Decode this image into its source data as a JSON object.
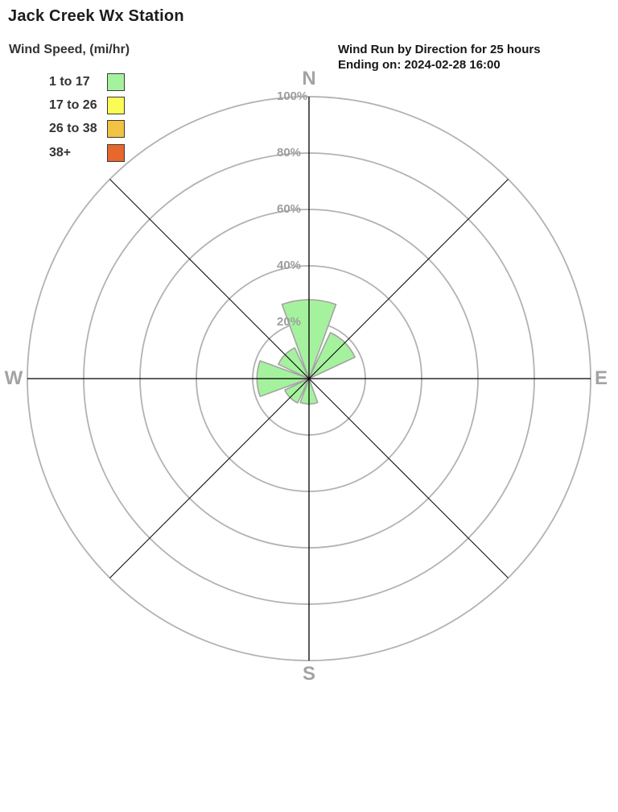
{
  "page": {
    "title": "Jack Creek Wx Station"
  },
  "header": {
    "line1": "Wind Run by Direction for 25 hours",
    "line2": "Ending on: 2024-02-28 16:00"
  },
  "legend": {
    "title": "Wind Speed, (mi/hr)",
    "items": [
      {
        "label": "1 to 17",
        "color": "#a5f29e"
      },
      {
        "label": "17 to 26",
        "color": "#fbfb55"
      },
      {
        "label": "26 to 38",
        "color": "#f1c342"
      },
      {
        "label": "38+",
        "color": "#e8672c"
      }
    ]
  },
  "chart_data": {
    "type": "windrose",
    "title": "Wind Run by Direction for 25 hours",
    "subtitle": "Ending on: 2024-02-28 16:00",
    "units": "percent of total wind run",
    "directions": [
      "N",
      "NE",
      "E",
      "SE",
      "S",
      "SW",
      "W",
      "NW"
    ],
    "petal_width_deg": 40,
    "rings_percent": [
      20,
      40,
      60,
      80,
      100
    ],
    "ring_label_suffix": "%",
    "rlim": [
      0,
      100
    ],
    "compass_labels": [
      "N",
      "E",
      "S",
      "W"
    ],
    "series": [
      {
        "name": "1 to 17",
        "color": "#a5f29e",
        "values_percent": [
          28,
          18,
          0,
          0,
          9,
          9.5,
          18.5,
          12
        ]
      }
    ],
    "style": {
      "ring_color": "#b2b2b2",
      "axis_color": "#000000",
      "petal_border_color": "#a3a3a3",
      "label_color": "#9e9e9e"
    }
  }
}
